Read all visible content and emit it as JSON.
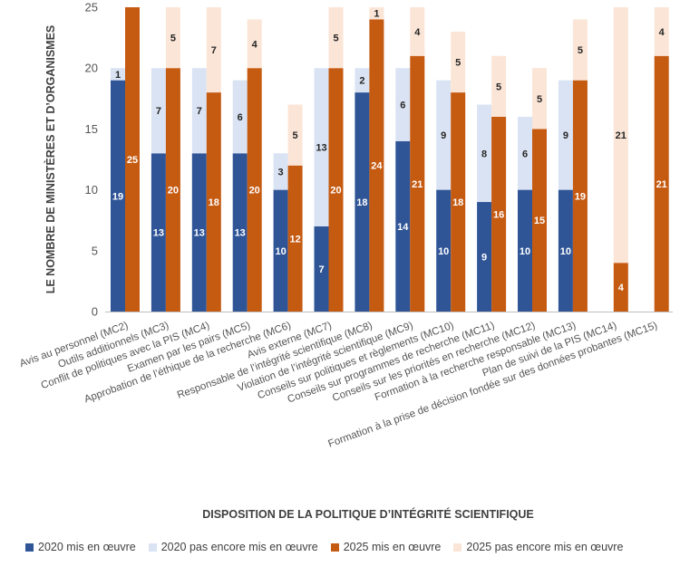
{
  "chart_data": {
    "type": "bar",
    "subtype": "stacked-grouped",
    "xlabel": "DISPOSITION DE LA POLITIQUE D’INTÉGRITÉ SCIENTIFIQUE",
    "ylabel": "LE NOMBRE DE MINISTÈRES ET D’ORGANISMES",
    "ylim": [
      0,
      25
    ],
    "yticks": [
      0,
      5,
      10,
      15,
      20,
      25
    ],
    "grid": false,
    "legend_position": "bottom",
    "categories": [
      "Avis au personnel (MC2)",
      "Outils additionnels (MC3)",
      "Conflit de politiques avec la PIS (MC4)",
      "Examen par les pairs (MC5)",
      "Approbation de l’éthique de la recherche (MC6)",
      "Avis externe (MC7)",
      "Responsable de l’intégrité scientifique (MC8)",
      "Violation de l’intégrité scientifique (MC9)",
      "Conseils sur politiques et règlements (MC10)",
      "Conseils sur programmes de recherche (MC11)",
      "Conseils sur les priorités en recherche (MC12)",
      "Formation à la recherche responsable (MC13)",
      "Plan de suivi de la PIS (MC14)",
      "Formation à la prise de décision fondée sur des données probantes (MC15)"
    ],
    "series": [
      {
        "name": "2020 mis en œuvre",
        "color": "#2f5597",
        "group": "2020",
        "values": [
          19,
          13,
          13,
          13,
          10,
          7,
          18,
          14,
          10,
          9,
          10,
          10,
          0,
          0
        ]
      },
      {
        "name": "2020 pas encore mis en œuvre",
        "color": "#dae3f3",
        "group": "2020",
        "values": [
          1,
          7,
          7,
          6,
          3,
          13,
          2,
          6,
          9,
          8,
          6,
          9,
          0,
          0
        ]
      },
      {
        "name": "2025 mis en œuvre",
        "color": "#c55a11",
        "group": "2025",
        "values": [
          25,
          20,
          18,
          20,
          12,
          20,
          24,
          21,
          18,
          16,
          15,
          19,
          4,
          21
        ]
      },
      {
        "name": "2025 pas encore mis en œuvre",
        "color": "#fbe5d6",
        "group": "2025",
        "values": [
          0,
          5,
          7,
          4,
          5,
          5,
          1,
          4,
          5,
          5,
          5,
          5,
          21,
          4
        ]
      }
    ],
    "labels": {
      "2020 mis en œuvre": [
        "19",
        "13",
        "13",
        "13",
        "10",
        "7",
        "18",
        "14",
        "10",
        "9",
        "10",
        "10",
        "0",
        "0"
      ],
      "2020 pas encore mis en œuvre": [
        "1",
        "7",
        "7",
        "6",
        "3",
        "13",
        "2",
        "6",
        "9",
        "8",
        "6",
        "9",
        "",
        ""
      ],
      "2025 mis en œuvre": [
        "25",
        "20",
        "18",
        "20",
        "12",
        "20",
        "24",
        "21",
        "18",
        "16",
        "15",
        "19",
        "4",
        "21"
      ],
      "2025 pas encore mis en œuvre": [
        "",
        "5",
        "7",
        "4",
        "5",
        "5",
        "1",
        "4",
        "5",
        "5",
        "5",
        "5",
        "21",
        "4"
      ]
    }
  }
}
